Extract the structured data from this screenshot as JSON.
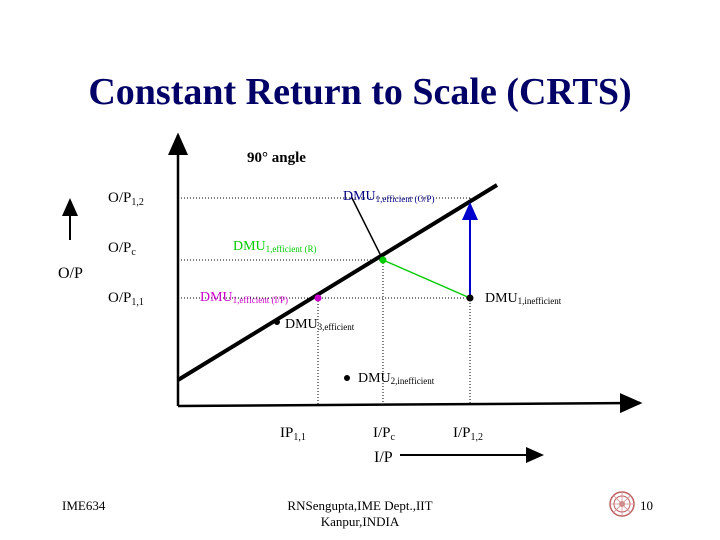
{
  "title": "Constant Return to Scale (CRTS)",
  "diagram": {
    "angle_label": "90° angle",
    "y_axis_label": "O/P",
    "x_axis_label": "I/P",
    "y_ticks": {
      "op12": {
        "main": "O/P",
        "sub": "1,2"
      },
      "opc": {
        "main": "O/P",
        "sub": "c"
      },
      "op11": {
        "main": "O/P",
        "sub": "1,1"
      }
    },
    "x_ticks": {
      "ip11": {
        "main": "IP",
        "sub": "1,1"
      },
      "ipc": {
        "main": "I/P",
        "sub": "c"
      },
      "ip12": {
        "main": "I/P",
        "sub": "1,2"
      }
    },
    "points": {
      "dmu1_eff_op": {
        "main": "DMU",
        "sub": "1,efficient (O/P)",
        "color": "#000080"
      },
      "dmu1_eff_r": {
        "main": "DMU",
        "sub": "1,efficient (R)",
        "color": "#00cc00"
      },
      "dmu1_eff_ip": {
        "main": "DMU",
        "sub": "1,efficient (I/P)",
        "color": "#cc00cc"
      },
      "dmu1_ineff": {
        "main": "DMU",
        "sub": "1,inefficient"
      },
      "dmu3_eff": {
        "main": "DMU",
        "sub": "3,efficient"
      },
      "dmu2_ineff": {
        "main": "DMU",
        "sub": "2,inefficient"
      }
    },
    "colors": {
      "frontier": "#000000",
      "green": "#00cc00",
      "blue": "#0000cc",
      "magenta": "#cc00cc",
      "navy": "#000080"
    }
  },
  "footer": {
    "left": "IME634",
    "center_line1": "RNSengupta,IME Dept.,IIT",
    "center_line2": "Kanpur,INDIA",
    "page": "10"
  }
}
